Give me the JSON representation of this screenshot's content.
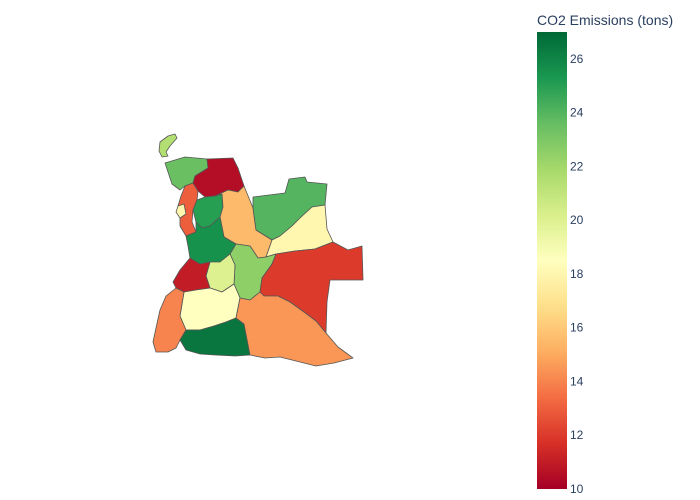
{
  "colorbar": {
    "title": "CO2 Emissions (tons)",
    "min": 10,
    "max": 27,
    "ticks": [
      10,
      12,
      14,
      16,
      18,
      20,
      22,
      24,
      26
    ],
    "colorscale": "RdYlGn"
  },
  "regions": [
    {
      "id": "cabinda",
      "value": 21.5
    },
    {
      "id": "zaire",
      "value": 23.5
    },
    {
      "id": "uige",
      "value": 10.5
    },
    {
      "id": "bengo",
      "value": 13
    },
    {
      "id": "luanda",
      "value": 18
    },
    {
      "id": "cuanza-norte",
      "value": 25
    },
    {
      "id": "malanje",
      "value": 15.5
    },
    {
      "id": "lunda-norte",
      "value": 24
    },
    {
      "id": "lunda-sul",
      "value": 18
    },
    {
      "id": "cuanza-sul",
      "value": 25.5
    },
    {
      "id": "bie",
      "value": 22.5
    },
    {
      "id": "huambo",
      "value": 20
    },
    {
      "id": "benguela",
      "value": 11
    },
    {
      "id": "moxico",
      "value": 12
    },
    {
      "id": "huila",
      "value": 18.5
    },
    {
      "id": "namibe",
      "value": 14
    },
    {
      "id": "cunene",
      "value": 26.5
    },
    {
      "id": "cuando-cubango",
      "value": 14.5
    }
  ]
}
